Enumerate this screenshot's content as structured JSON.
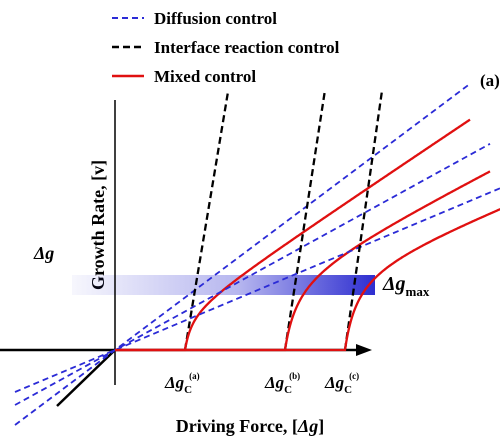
{
  "chart_data": {
    "type": "line",
    "xlabel_prefix": "Driving Force, [",
    "xlabel_symbol": "Δg",
    "xlabel_suffix": "]",
    "ylabel": "Growth Rate, [v]",
    "x_range": [
      -1,
      4
    ],
    "y_range": [
      -0.6,
      2.6
    ],
    "legend": {
      "position": "top",
      "entries": [
        {
          "label": "Diffusion control",
          "color": "#2b2bd6",
          "dash": "dashed"
        },
        {
          "label": "Interface reaction control",
          "color": "#000000",
          "dash": "dashed"
        },
        {
          "label": "Mixed control",
          "color": "#e01010",
          "dash": "solid"
        }
      ]
    },
    "cases": [
      {
        "label": "(a)",
        "critical_label": "Δg",
        "critical_sub": "C",
        "critical_sup": "(a)",
        "critical_x": 0.7,
        "slope": 0.75
      },
      {
        "label": "(b)",
        "critical_label": "Δg",
        "critical_sub": "C",
        "critical_sup": "(b)",
        "critical_x": 1.7,
        "slope": 0.55
      },
      {
        "label": "(c)",
        "critical_label": "Δg",
        "critical_sub": "C",
        "critical_sup": "(c)",
        "critical_x": 2.3,
        "slope": 0.42
      }
    ],
    "band": {
      "left_label": "Δg",
      "right_label": "Δg",
      "right_sub": "max",
      "x_end": 2.6,
      "y_center": 0.65,
      "color": "#2e2ed0"
    }
  }
}
